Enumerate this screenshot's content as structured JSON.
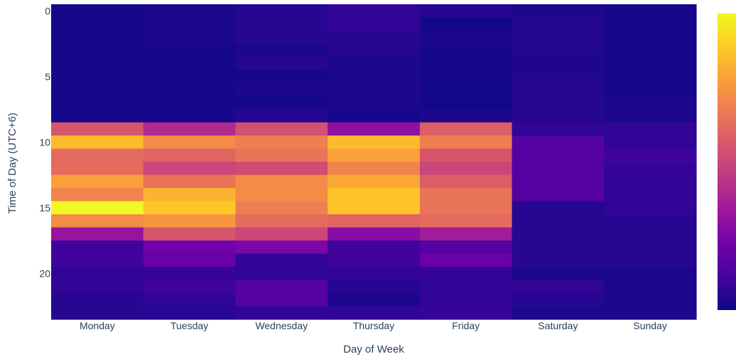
{
  "chart_data": {
    "type": "heatmap",
    "title": "",
    "xlabel": "Day of Week",
    "ylabel": "Time of Day (UTC+6)",
    "categories": [
      "Monday",
      "Tuesday",
      "Wednesday",
      "Thursday",
      "Friday",
      "Saturday",
      "Sunday"
    ],
    "y": [
      0,
      1,
      2,
      3,
      4,
      5,
      6,
      7,
      8,
      9,
      10,
      11,
      12,
      13,
      14,
      15,
      16,
      17,
      18,
      19,
      20,
      21,
      22,
      23
    ],
    "y_ticks": [
      0,
      5,
      10,
      15,
      20
    ],
    "y_reversed": true,
    "colorscale": "plasma",
    "colorscale_stops": [
      "#0d0887",
      "#46039f",
      "#7201a8",
      "#9c179e",
      "#bd3786",
      "#d8576b",
      "#ed7953",
      "#fb9f3a",
      "#fdca26",
      "#f0f921"
    ],
    "colorbar": true,
    "value_range": [
      0,
      1
    ],
    "values_normalized": [
      [
        0.02,
        0.03,
        0.05,
        0.07,
        0.05,
        0.03,
        0.02
      ],
      [
        0.02,
        0.03,
        0.05,
        0.07,
        0.01,
        0.04,
        0.02
      ],
      [
        0.02,
        0.03,
        0.05,
        0.05,
        0.03,
        0.04,
        0.02
      ],
      [
        0.02,
        0.02,
        0.03,
        0.05,
        0.02,
        0.04,
        0.02
      ],
      [
        0.02,
        0.02,
        0.05,
        0.03,
        0.01,
        0.03,
        0.02
      ],
      [
        0.02,
        0.02,
        0.02,
        0.03,
        0.02,
        0.04,
        0.02
      ],
      [
        0.02,
        0.02,
        0.03,
        0.03,
        0.01,
        0.05,
        0.02
      ],
      [
        0.02,
        0.02,
        0.02,
        0.03,
        0.01,
        0.05,
        0.03
      ],
      [
        0.02,
        0.02,
        0.05,
        0.02,
        0.03,
        0.05,
        0.03
      ],
      [
        0.55,
        0.4,
        0.53,
        0.3,
        0.58,
        0.07,
        0.07
      ],
      [
        0.85,
        0.72,
        0.68,
        0.85,
        0.68,
        0.15,
        0.07
      ],
      [
        0.62,
        0.6,
        0.65,
        0.78,
        0.55,
        0.15,
        0.1
      ],
      [
        0.62,
        0.5,
        0.52,
        0.7,
        0.5,
        0.15,
        0.08
      ],
      [
        0.78,
        0.65,
        0.72,
        0.8,
        0.58,
        0.15,
        0.07
      ],
      [
        0.7,
        0.83,
        0.72,
        0.87,
        0.65,
        0.15,
        0.07
      ],
      [
        1.0,
        0.88,
        0.68,
        0.87,
        0.65,
        0.05,
        0.07
      ],
      [
        0.72,
        0.75,
        0.62,
        0.6,
        0.62,
        0.05,
        0.05
      ],
      [
        0.32,
        0.55,
        0.5,
        0.28,
        0.35,
        0.05,
        0.05
      ],
      [
        0.1,
        0.22,
        0.25,
        0.1,
        0.15,
        0.05,
        0.05
      ],
      [
        0.1,
        0.2,
        0.07,
        0.1,
        0.2,
        0.05,
        0.05
      ],
      [
        0.07,
        0.08,
        0.07,
        0.07,
        0.08,
        0.03,
        0.03
      ],
      [
        0.07,
        0.1,
        0.15,
        0.05,
        0.07,
        0.07,
        0.03
      ],
      [
        0.05,
        0.07,
        0.15,
        0.03,
        0.07,
        0.05,
        0.03
      ],
      [
        0.05,
        0.05,
        0.07,
        0.07,
        0.08,
        0.03,
        0.03
      ]
    ]
  }
}
